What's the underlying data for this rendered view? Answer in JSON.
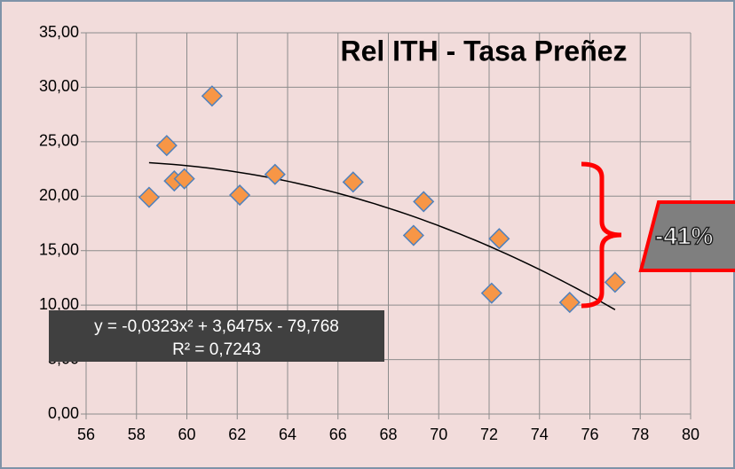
{
  "chart_data": {
    "type": "scatter",
    "title": "Rel ITH - Tasa Preñez",
    "x": [
      58.5,
      59.2,
      59.5,
      59.9,
      61.0,
      62.1,
      63.5,
      66.6,
      69.0,
      69.4,
      72.1,
      72.4,
      75.2,
      77.0
    ],
    "values": [
      19.9,
      24.65,
      21.4,
      21.6,
      29.2,
      20.1,
      22.0,
      21.3,
      16.4,
      19.5,
      11.1,
      16.1,
      10.25,
      12.1
    ],
    "color": "#f79646",
    "edge_color": "#4f81bd",
    "xlim": [
      56,
      80
    ],
    "xticks": [
      56,
      58,
      60,
      62,
      64,
      66,
      68,
      70,
      72,
      74,
      76,
      78,
      80
    ],
    "ylim": [
      0,
      35
    ],
    "yticks": [
      {
        "value": 0,
        "label": "0,00"
      },
      {
        "value": 5,
        "label": "5,00"
      },
      {
        "value": 10,
        "label": "10,00"
      },
      {
        "value": 15,
        "label": "15,00"
      },
      {
        "value": 20,
        "label": "20,00"
      },
      {
        "value": 25,
        "label": "25,00"
      },
      {
        "value": 30,
        "label": "30,00"
      },
      {
        "value": 35,
        "label": "35,00"
      }
    ],
    "grid": true,
    "trendline": {
      "type": "polynomial",
      "coefficients": [
        -0.0323,
        3.6475,
        -79.768
      ],
      "equation": "y = -0,0323x² + 3,6475x - 79,768",
      "r2": "R² = 0,7243"
    },
    "annotation": "-41%"
  }
}
